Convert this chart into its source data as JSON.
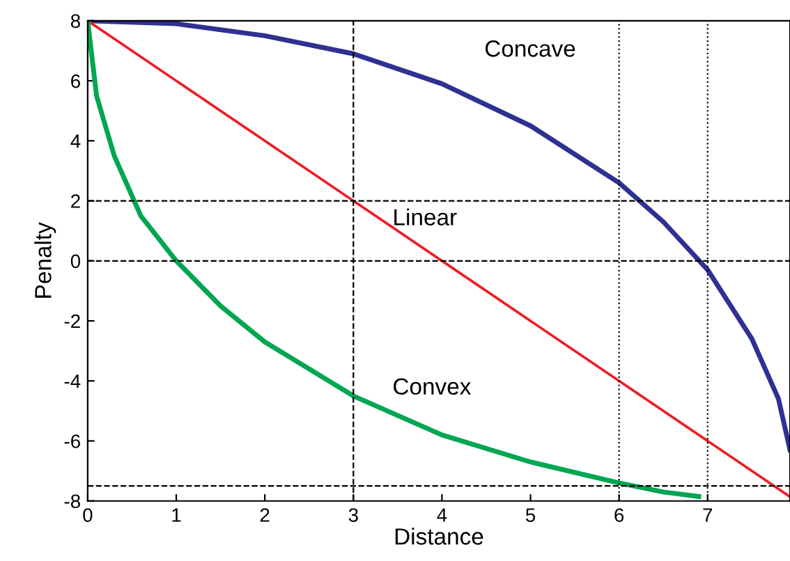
{
  "chart_data": {
    "type": "line",
    "xlabel": "Distance",
    "ylabel": "Penalty",
    "xlim": [
      0,
      7.93
    ],
    "ylim": [
      -8,
      8
    ],
    "xticks": [
      0,
      1,
      2,
      3,
      4,
      5,
      6,
      7
    ],
    "yticks": [
      -8,
      -6,
      -4,
      -2,
      0,
      2,
      4,
      6,
      8
    ],
    "grid": false,
    "legend": false,
    "marker": "none",
    "line_style": "solid",
    "series": [
      {
        "name": "Concave",
        "color": "#2e3192",
        "x": [
          0,
          1,
          2,
          3,
          4,
          5,
          6,
          6.5,
          7,
          7.5,
          7.8,
          7.93
        ],
        "values": [
          8,
          7.9,
          7.5,
          6.9,
          5.9,
          4.5,
          2.6,
          1.3,
          -0.3,
          -2.6,
          -4.6,
          -6.3
        ]
      },
      {
        "name": "Linear",
        "color": "#ee1c24",
        "x": [
          0,
          7.93
        ],
        "values": [
          8,
          -7.86
        ]
      },
      {
        "name": "Convex",
        "color": "#00a651",
        "x": [
          0,
          0.1,
          0.3,
          0.6,
          1,
          1.5,
          2,
          3,
          4,
          5,
          6,
          6.5,
          6.9
        ],
        "values": [
          8,
          5.5,
          3.5,
          1.5,
          0,
          -1.5,
          -2.7,
          -4.5,
          -5.8,
          -6.7,
          -7.4,
          -7.7,
          -7.85
        ]
      }
    ],
    "ref_lines": [
      {
        "axis": "y",
        "value": 2,
        "line_style": "dashed",
        "color": "#000000"
      },
      {
        "axis": "y",
        "value": 0,
        "line_style": "dashed",
        "color": "#000000"
      },
      {
        "axis": "y",
        "value": -7.5,
        "line_style": "dashed",
        "color": "#000000"
      },
      {
        "axis": "x",
        "value": 3,
        "line_style": "dashed",
        "color": "#000000"
      },
      {
        "axis": "x",
        "value": 6,
        "line_style": "dotted",
        "color": "#000000"
      },
      {
        "axis": "x",
        "value": 7,
        "line_style": "dotted",
        "color": "#000000"
      }
    ]
  }
}
